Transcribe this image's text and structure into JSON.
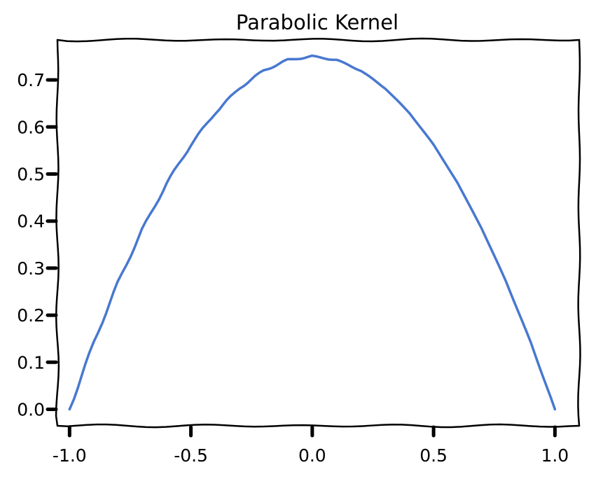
{
  "chart_data": {
    "type": "line",
    "title": "Parabolic Kernel",
    "xlabel": "",
    "ylabel": "",
    "xlim": [
      -1.05,
      1.1
    ],
    "ylim": [
      -0.035,
      0.785
    ],
    "xticks": [
      -1.0,
      -0.5,
      0.0,
      0.5,
      1.0
    ],
    "xtick_labels": [
      "-1.0",
      "-0.5",
      "0.0",
      "0.5",
      "1.0"
    ],
    "yticks": [
      0.0,
      0.1,
      0.2,
      0.3,
      0.4,
      0.5,
      0.6,
      0.7
    ],
    "ytick_labels": [
      "0.0",
      "0.1",
      "0.2",
      "0.3",
      "0.4",
      "0.5",
      "0.6",
      "0.7"
    ],
    "grid": false,
    "legend": "none",
    "line_color": "#4878d0",
    "series": [
      {
        "x": [
          -1.0,
          -0.9,
          -0.8,
          -0.7,
          -0.6,
          -0.5,
          -0.4,
          -0.3,
          -0.2,
          -0.1,
          0.0,
          0.1,
          0.2,
          0.3,
          0.4,
          0.5,
          0.6,
          0.7,
          0.8,
          0.9,
          1.0
        ],
        "y": [
          0.0,
          0.1425,
          0.27,
          0.3825,
          0.48,
          0.5625,
          0.63,
          0.6825,
          0.72,
          0.7425,
          0.75,
          0.7425,
          0.72,
          0.6825,
          0.63,
          0.5625,
          0.48,
          0.3825,
          0.27,
          0.1425,
          0.0
        ]
      }
    ]
  }
}
